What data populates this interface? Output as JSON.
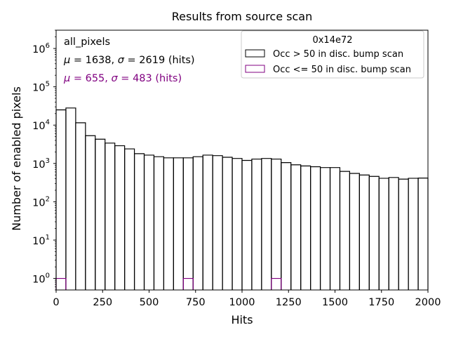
{
  "chart_data": {
    "type": "histogram",
    "title": "Results from source scan",
    "xlabel": "Hits",
    "ylabel": "Number of enabled pixels",
    "xlim": [
      0,
      2000
    ],
    "ylim": [
      0.5,
      3000000
    ],
    "yscale": "log",
    "xticks": [
      0,
      250,
      500,
      750,
      1000,
      1250,
      1500,
      1750,
      2000
    ],
    "xtick_labels": [
      "0",
      "250",
      "500",
      "750",
      "1000",
      "1250",
      "1500",
      "1750",
      "2000"
    ],
    "yticks": [
      1,
      10,
      100,
      1000,
      10000,
      100000,
      1000000
    ],
    "ytick_mantissa": "10",
    "ytick_exponents": [
      "0",
      "1",
      "2",
      "3",
      "4",
      "5",
      "6"
    ],
    "bin_width": 52.63,
    "legend": {
      "title": "0x14e72",
      "placement": "upper right"
    },
    "annotations": {
      "label": "all_pixels",
      "stats_black": {
        "mu_sym": "μ",
        "mu_text": " = 1638, ",
        "sigma_sym": "σ",
        "sigma_text": " = 2619 (hits)"
      },
      "stats_purple": {
        "mu_sym": "μ",
        "mu_text": " = 655, ",
        "sigma_sym": "σ",
        "sigma_text": " = 483 (hits)"
      }
    },
    "series": [
      {
        "name": "Occ > 50 in disc. bump scan",
        "color": "#000000",
        "values": [
          25000,
          28000,
          11500,
          5300,
          4300,
          3400,
          2900,
          2400,
          1800,
          1650,
          1500,
          1400,
          1400,
          1400,
          1500,
          1650,
          1600,
          1450,
          1350,
          1200,
          1300,
          1350,
          1300,
          1050,
          920,
          860,
          820,
          780,
          780,
          620,
          550,
          500,
          460,
          410,
          430,
          390,
          410,
          415
        ]
      },
      {
        "name": "Occ <= 50 in disc. bump scan",
        "color": "#800080",
        "values": [
          1,
          0,
          0,
          0,
          0,
          0,
          0,
          0,
          0,
          0,
          0,
          0,
          0,
          1,
          0,
          0,
          0,
          0,
          0,
          0,
          0,
          0,
          1,
          0,
          0,
          0,
          0,
          0,
          0,
          0,
          0,
          0,
          0,
          0,
          0,
          0,
          0,
          0
        ]
      }
    ]
  }
}
